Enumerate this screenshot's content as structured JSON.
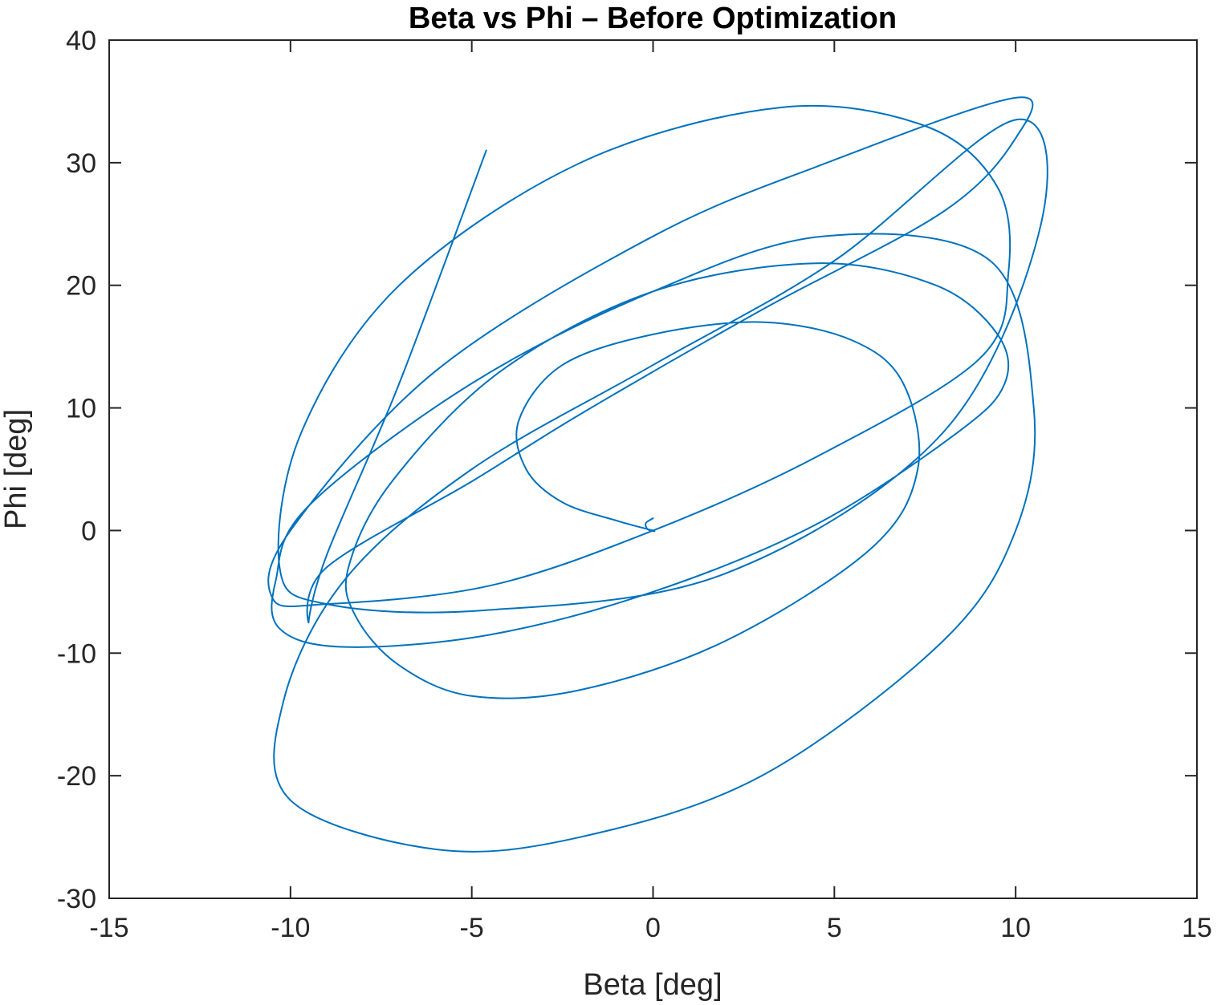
{
  "chart_data": {
    "type": "line",
    "title": "Beta vs Phi – Before Optimization",
    "xlabel": "Beta [deg]",
    "ylabel": "Phi [deg]",
    "xlim": [
      -15,
      15
    ],
    "ylim": [
      -30,
      40
    ],
    "xticks": [
      -15,
      -10,
      -5,
      0,
      5,
      10,
      15
    ],
    "yticks": [
      -30,
      -20,
      -10,
      0,
      10,
      20,
      30,
      40
    ],
    "xtick_labels": [
      "-15",
      "-10",
      "-5",
      "0",
      "5",
      "10",
      "15"
    ],
    "ytick_labels": [
      "-30",
      "-20",
      "-10",
      "0",
      "10",
      "20",
      "30",
      "40"
    ],
    "grid": false,
    "legend": "none",
    "series": [
      {
        "color": "#0072BD",
        "x": [
          0.0,
          -0.2,
          -0.15,
          0.0,
          -1.0,
          -2.5,
          -3.5,
          -3.7,
          -2.5,
          0.0,
          3.0,
          5.5,
          6.9,
          7.3,
          6.0,
          2.0,
          -2.0,
          -5.0,
          -7.0,
          -8.2,
          -8.4,
          -7.2,
          -4.2,
          0.0,
          4.5,
          7.8,
          9.5,
          9.7,
          8.4,
          4.5,
          0.0,
          -4.5,
          -8.5,
          -10.3,
          -10.4,
          -9.5,
          -5.0,
          0.0,
          4.7,
          9.3,
          10.5,
          10.0,
          8.0,
          3.0,
          -2.0,
          -6.0,
          -10.0,
          -10.2,
          -8.5,
          -5.0,
          0.0,
          5.0,
          10.0,
          10.7,
          8.0,
          2.0,
          -4.6,
          -9.0,
          -10.3,
          -9.7,
          -7.0,
          -2.0,
          3.5,
          7.5,
          9.5,
          9.8,
          9.0,
          4.5,
          0.0,
          -4.5,
          -9.0,
          -10.5,
          -10.0,
          -6.0,
          0.0,
          4.8,
          10.0,
          10.0,
          8.0,
          3.0,
          -2.0,
          -5.0,
          -9.0,
          -9.5,
          -9.0,
          -7.0,
          -4.6
        ],
        "y": [
          1.0,
          0.6,
          0.1,
          0.0,
          0.8,
          2.3,
          5.0,
          9.0,
          13.5,
          16.0,
          17.0,
          15.5,
          12.0,
          5.0,
          -1.5,
          -9.0,
          -13.0,
          -13.5,
          -11.0,
          -7.0,
          -3.0,
          4.0,
          13.0,
          19.5,
          21.8,
          20.0,
          16.0,
          12.0,
          8.0,
          0.5,
          -5.0,
          -8.5,
          -9.5,
          -8.0,
          -4.0,
          2.0,
          12.0,
          19.5,
          24.0,
          22.0,
          10.0,
          0.0,
          -9.0,
          -20.0,
          -25.0,
          -26.0,
          -22.0,
          -14.0,
          -4.0,
          5.0,
          13.5,
          22.0,
          33.5,
          25.0,
          8.0,
          -3.5,
          -6.5,
          -6.0,
          -3.0,
          8.0,
          20.0,
          30.0,
          34.5,
          33.0,
          28.0,
          21.0,
          14.0,
          6.0,
          0.0,
          -4.5,
          -6.0,
          -5.5,
          0.0,
          13.0,
          24.0,
          30.0,
          35.3,
          32.0,
          26.0,
          18.0,
          9.5,
          4.0,
          -3.0,
          -7.5,
          -2.0,
          12.0,
          31.0
        ],
        "smooth": true
      }
    ]
  }
}
